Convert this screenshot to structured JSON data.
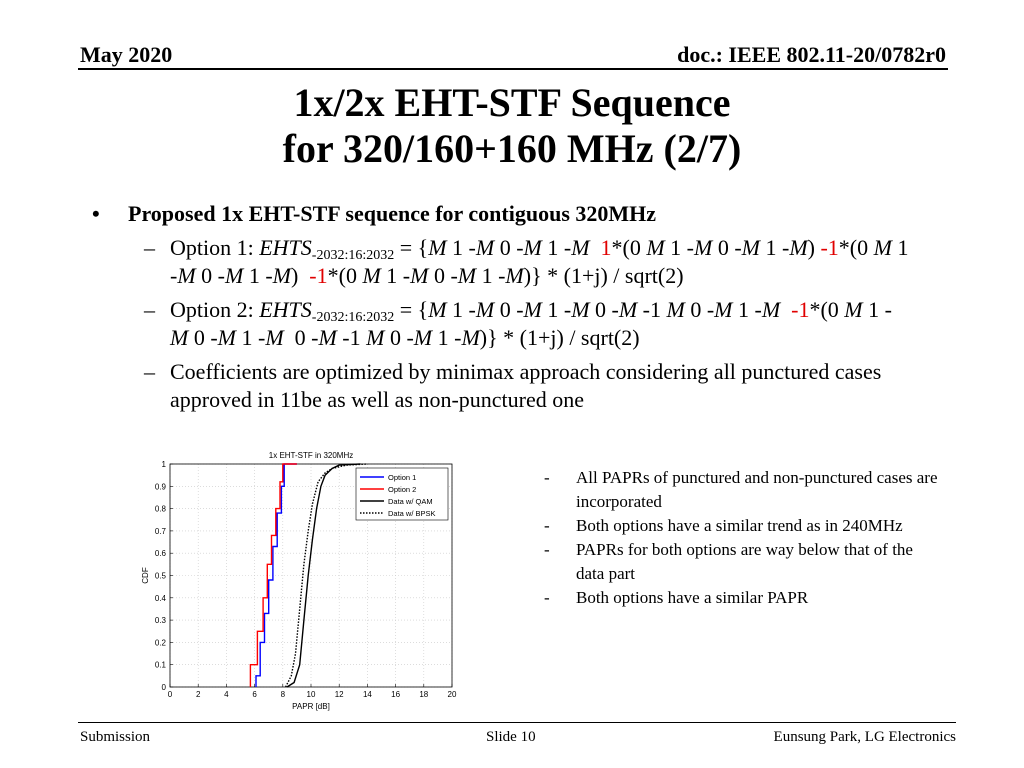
{
  "header": {
    "date": "May 2020",
    "doc": "doc.: IEEE 802.11-20/0782r0"
  },
  "title": {
    "line1": "1x/2x EHT-STF Sequence",
    "line2": "for 320/160+160 MHz (2/7)"
  },
  "bullets": {
    "main": "Proposed 1x EHT-STF sequence for contiguous 320MHz",
    "option1": {
      "label": "Option 1: ",
      "var": "EHTS",
      "sub": "-2032:16:2032",
      "p1": " = {",
      "p2": "M",
      "p3": " 1 -",
      "p4": "M",
      "p5": " 0 -",
      "p6": "M",
      "p7": " 1 -",
      "p8": "M",
      "p9": "  ",
      "r1": "1",
      "p10": "*(0 ",
      "p11": "M",
      "p12": " 1 -",
      "p13": "M",
      "p14": " 0 -",
      "p15": "M",
      "p16": " 1 -",
      "p17": "M",
      "p18": ")",
      "r2": "-1",
      "p19": "*(0 ",
      "p20": "M",
      "p21": " 1 -",
      "p22": "M",
      "p23": " 0 -",
      "p24": "M",
      "p25": " 1 -",
      "p26": "M",
      "p27": ")  ",
      "r3": "-1",
      "p28": "*(0 ",
      "p29": "M",
      "p30": " 1 -",
      "p31": "M",
      "p32": " 0 -",
      "p33": "M",
      "p34": " 1 -",
      "p35": "M",
      "p36": ")} * (1+j) / sqrt(2)"
    },
    "option2": {
      "label": "Option 2: ",
      "var": "EHTS",
      "sub": "-2032:16:2032",
      "p1": " = {",
      "p2": "M",
      "p3": " 1 -",
      "p4": "M",
      "p5": " 0 -",
      "p6": "M",
      "p7": " 1 -",
      "p8": "M",
      "p9": " 0 -",
      "p10": "M",
      "p11": " -1 ",
      "p12": "M",
      "p13": " 0 -",
      "p14": "M",
      "p15": " 1 -",
      "p16": "M",
      "p17": "  ",
      "r1": "-1",
      "p18": "*(0 ",
      "p19": "M",
      "p20": " 1 -",
      "p21": "M",
      "p22": " 0 -",
      "p23": "M",
      "p24": " 1 -",
      "p25": "M",
      "p26": "  0 -",
      "p27": "M",
      "p28": " -1 ",
      "p29": "M",
      "p30": " 0 -",
      "p31": "M",
      "p32": " 1 -",
      "p33": "M",
      "p34": ")} * (1+j) / sqrt(2)"
    },
    "coef": "Coefficients are optimized by minimax approach considering all punctured cases approved in 11be as well as non-punctured one"
  },
  "chart_data": {
    "type": "line",
    "title": "1x EHT-STF in 320MHz",
    "xlabel": "PAPR [dB]",
    "ylabel": "CDF",
    "xlim": [
      0,
      20
    ],
    "ylim": [
      0,
      1
    ],
    "xticks": [
      "0",
      "2",
      "4",
      "6",
      "8",
      "10",
      "12",
      "14",
      "16",
      "18",
      "20"
    ],
    "yticks": [
      "0",
      "0.1",
      "0.2",
      "0.3",
      "0.4",
      "0.5",
      "0.6",
      "0.7",
      "0.8",
      "0.9",
      "1"
    ],
    "grid": true,
    "legend_position": "top-right",
    "series": [
      {
        "name": "Option 1",
        "color": "#0000ff",
        "style": "solid",
        "x": [
          6.1,
          6.1,
          6.4,
          6.4,
          6.7,
          6.7,
          7.0,
          7.0,
          7.3,
          7.3,
          7.6,
          7.6,
          7.9,
          7.9,
          8.1,
          8.1,
          9.0
        ],
        "y": [
          0,
          0.05,
          0.05,
          0.2,
          0.2,
          0.33,
          0.33,
          0.48,
          0.48,
          0.63,
          0.63,
          0.78,
          0.78,
          0.9,
          0.9,
          1.0,
          1.0
        ]
      },
      {
        "name": "Option 2",
        "color": "#ff0000",
        "style": "solid",
        "x": [
          5.7,
          5.7,
          6.2,
          6.2,
          6.6,
          6.6,
          6.9,
          6.9,
          7.2,
          7.2,
          7.5,
          7.5,
          7.8,
          7.8,
          8.0,
          8.0,
          9.0
        ],
        "y": [
          0,
          0.1,
          0.1,
          0.25,
          0.25,
          0.4,
          0.4,
          0.55,
          0.55,
          0.68,
          0.68,
          0.8,
          0.8,
          0.92,
          0.92,
          1.0,
          1.0
        ]
      },
      {
        "name": "Data w/ QAM",
        "color": "#000000",
        "style": "solid",
        "x": [
          8.3,
          8.8,
          9.2,
          9.5,
          9.8,
          10.1,
          10.4,
          10.7,
          11.0,
          11.5,
          12.0,
          13.5
        ],
        "y": [
          0,
          0.02,
          0.1,
          0.3,
          0.5,
          0.66,
          0.8,
          0.9,
          0.95,
          0.98,
          0.995,
          1.0
        ]
      },
      {
        "name": "Data w/ BPSK",
        "color": "#000000",
        "style": "dotted",
        "x": [
          8.2,
          8.6,
          8.9,
          9.2,
          9.5,
          9.8,
          10.1,
          10.5,
          11.0,
          11.5,
          12.5,
          14.0
        ],
        "y": [
          0,
          0.05,
          0.15,
          0.35,
          0.55,
          0.7,
          0.82,
          0.92,
          0.96,
          0.98,
          0.995,
          1.0
        ]
      }
    ]
  },
  "notes": [
    "All PAPRs of punctured and non-punctured cases are incorporated",
    "Both options have a similar trend as in 240MHz",
    "PAPRs for both options are way below that of the data part",
    "Both options have a similar PAPR"
  ],
  "note_marker": "-",
  "bullet_marks": {
    "l1": "•",
    "l2": "–"
  },
  "footer": {
    "left": "Submission",
    "center": "Slide 10",
    "right": "Eunsung Park, LG Electronics"
  }
}
